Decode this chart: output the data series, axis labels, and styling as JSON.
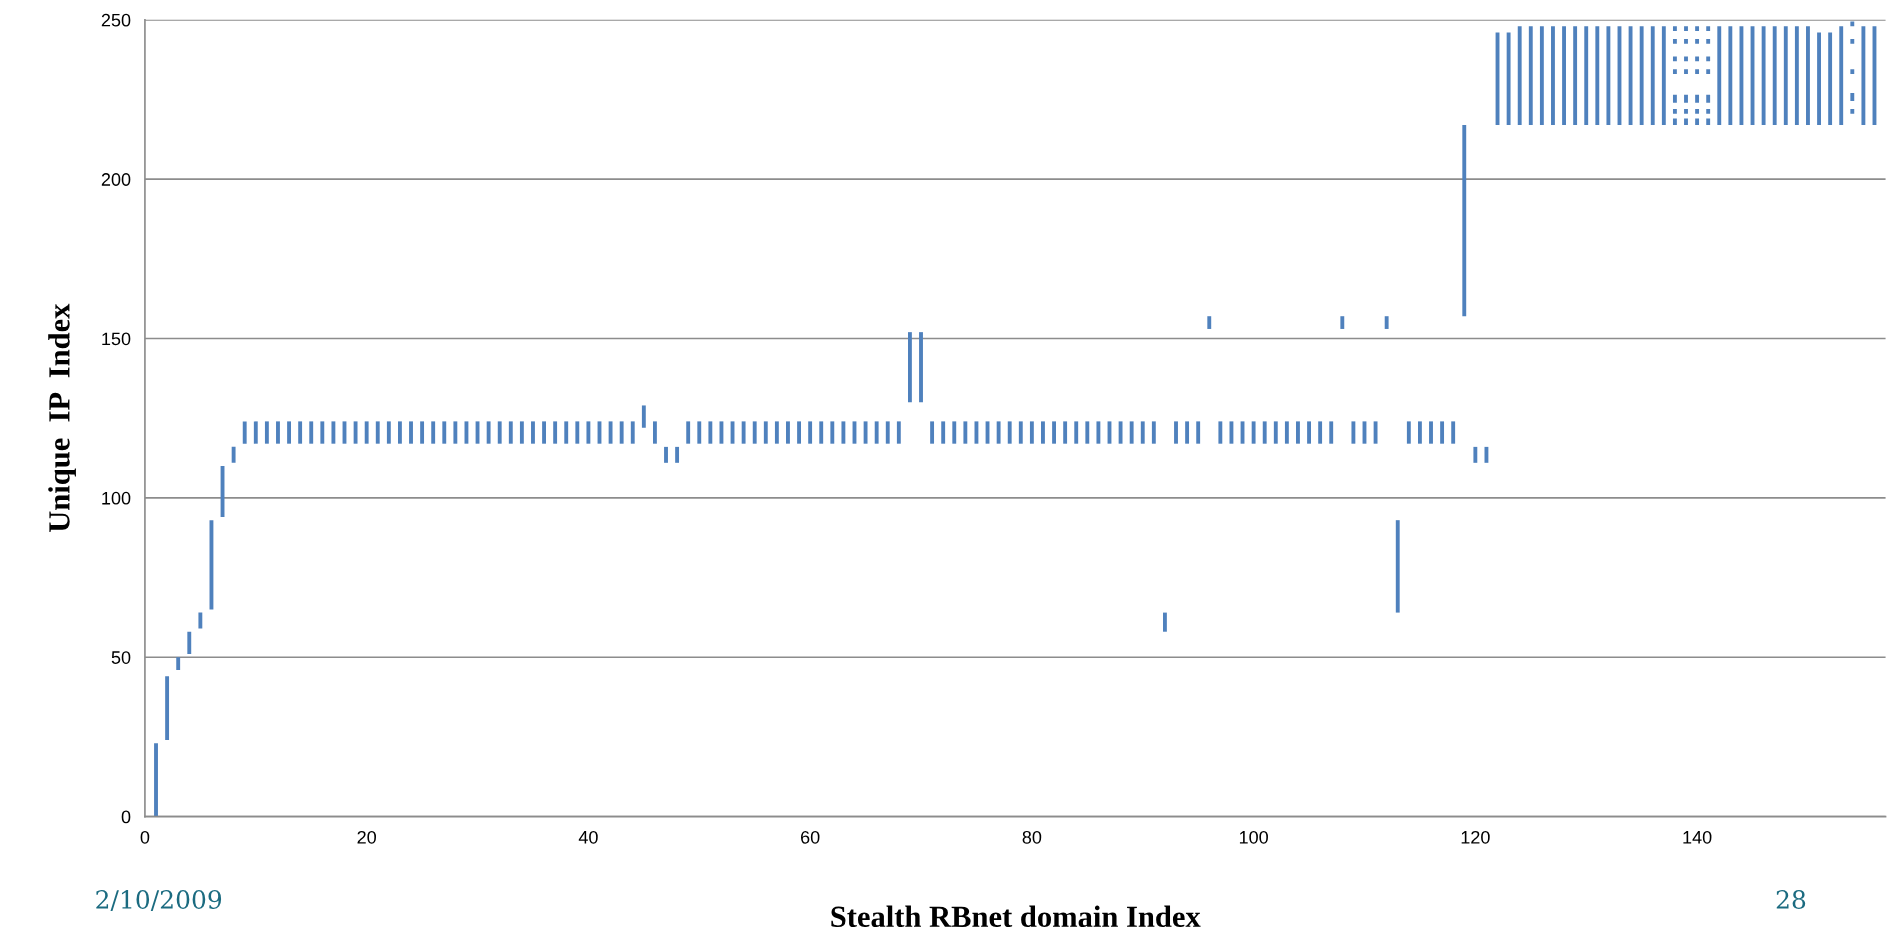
{
  "chart_data": {
    "type": "bar",
    "xlabel": "Stealth RBnet domain Index",
    "ylabel": "Unique  IP  Index",
    "xlim": [
      0,
      157
    ],
    "ylim": [
      0,
      250
    ],
    "xticks": [
      0,
      20,
      40,
      60,
      80,
      100,
      120,
      140
    ],
    "yticks": [
      0,
      50,
      100,
      150,
      200,
      250
    ],
    "grid": "y",
    "annotations": [
      "2/10/2009",
      "28"
    ],
    "series": [
      {
        "color": "#4f81bd",
        "x": [
          1,
          2,
          3,
          4,
          5,
          6,
          7,
          8,
          9,
          10,
          11,
          12,
          13,
          14,
          15,
          16,
          17,
          18,
          19,
          20,
          21,
          22,
          23,
          24,
          25,
          26,
          27,
          28,
          29,
          30,
          31,
          32,
          33,
          34,
          35,
          36,
          37,
          38,
          39,
          40,
          41,
          42,
          43,
          44,
          45,
          46,
          47,
          48,
          49,
          50,
          51,
          52,
          53,
          54,
          55,
          56,
          57,
          58,
          59,
          60,
          61,
          62,
          63,
          64,
          65,
          66,
          67,
          68,
          69,
          70,
          71,
          72,
          73,
          74,
          75,
          76,
          77,
          78,
          79,
          80,
          81,
          82,
          83,
          84,
          85,
          86,
          87,
          88,
          89,
          90,
          91,
          92,
          93,
          94,
          95,
          96,
          97,
          98,
          99,
          100,
          101,
          102,
          103,
          104,
          105,
          106,
          107,
          108,
          109,
          110,
          111,
          112,
          113,
          114,
          115,
          116,
          117,
          118,
          119,
          120,
          121
        ],
        "base": [
          0,
          24,
          46,
          51,
          59,
          65,
          94,
          111,
          117,
          117,
          117,
          117,
          117,
          117,
          117,
          117,
          117,
          117,
          117,
          117,
          117,
          117,
          117,
          117,
          117,
          117,
          117,
          117,
          117,
          117,
          117,
          117,
          117,
          117,
          117,
          117,
          117,
          117,
          117,
          117,
          117,
          117,
          117,
          117,
          122,
          117,
          111,
          111,
          117,
          117,
          117,
          117,
          117,
          117,
          117,
          117,
          117,
          117,
          117,
          117,
          117,
          117,
          117,
          117,
          117,
          117,
          117,
          117,
          130,
          130,
          117,
          117,
          117,
          117,
          117,
          117,
          117,
          117,
          117,
          117,
          117,
          117,
          117,
          117,
          117,
          117,
          117,
          117,
          117,
          117,
          117,
          58,
          117,
          117,
          117,
          153,
          117,
          117,
          117,
          117,
          117,
          117,
          117,
          117,
          117,
          117,
          117,
          153,
          117,
          117,
          117,
          153,
          64,
          117,
          117,
          117,
          117,
          117,
          157,
          111,
          111
        ],
        "values": [
          23,
          20,
          4,
          7,
          5,
          28,
          16,
          5,
          7,
          7,
          7,
          7,
          7,
          7,
          7,
          7,
          7,
          7,
          7,
          7,
          7,
          7,
          7,
          7,
          7,
          7,
          7,
          7,
          7,
          7,
          7,
          7,
          7,
          7,
          7,
          7,
          7,
          7,
          7,
          7,
          7,
          7,
          7,
          7,
          7,
          7,
          5,
          5,
          7,
          7,
          7,
          7,
          7,
          7,
          7,
          7,
          7,
          7,
          7,
          7,
          7,
          7,
          7,
          7,
          7,
          7,
          7,
          7,
          22,
          22,
          7,
          7,
          7,
          7,
          7,
          7,
          7,
          7,
          7,
          7,
          7,
          7,
          7,
          7,
          7,
          7,
          7,
          7,
          7,
          7,
          7,
          6,
          7,
          7,
          7,
          4,
          7,
          7,
          7,
          7,
          7,
          7,
          7,
          7,
          7,
          7,
          7,
          4,
          7,
          7,
          7,
          4,
          29,
          7,
          7,
          7,
          7,
          7,
          60,
          5,
          5
        ]
      },
      {
        "color": "#4f81bd",
        "x": [
          122,
          123,
          124,
          125,
          126,
          127,
          128,
          129,
          130,
          131,
          132,
          133,
          134,
          135,
          136,
          137,
          142,
          143,
          144,
          145,
          146,
          147,
          148,
          149,
          150,
          151,
          152,
          153,
          155,
          156
        ],
        "base": [
          217,
          217,
          217,
          217,
          217,
          217,
          217,
          217,
          217,
          217,
          217,
          217,
          217,
          217,
          217,
          217,
          217,
          217,
          217,
          217,
          217,
          217,
          217,
          217,
          217,
          217,
          217,
          217,
          217,
          217
        ],
        "values": [
          29,
          29,
          31,
          31,
          31,
          31,
          31,
          31,
          31,
          31,
          31,
          31,
          31,
          31,
          31,
          31,
          31,
          31,
          31,
          31,
          31,
          31,
          31,
          31,
          31,
          29,
          29,
          31,
          31,
          31
        ]
      },
      {
        "color": "#4f81bd",
        "x": [
          138,
          139,
          140,
          141,
          154
        ],
        "base": [
          246.5,
          246.5,
          246.5,
          246.5,
          248
        ],
        "values": [
          1.5,
          1.5,
          1.5,
          1.5,
          1.5
        ]
      },
      {
        "color": "#4f81bd",
        "x": [
          138,
          139,
          140,
          141,
          154
        ],
        "base": [
          242.5,
          242.5,
          242.5,
          242.5,
          242.5
        ],
        "values": [
          1.5,
          1.5,
          1.5,
          1.5,
          1.5
        ]
      },
      {
        "color": "#4f81bd",
        "x": [
          138,
          139,
          140,
          141
        ],
        "base": [
          237,
          237,
          237,
          237
        ],
        "values": [
          1.5,
          1.5,
          1.5,
          1.5
        ]
      },
      {
        "color": "#4f81bd",
        "x": [
          138,
          139,
          140,
          141,
          154
        ],
        "base": [
          233,
          233,
          233,
          233,
          233
        ],
        "values": [
          1.5,
          1.5,
          1.5,
          1.5,
          1.5
        ]
      },
      {
        "color": "#4f81bd",
        "x": [
          138,
          139,
          140,
          141,
          154
        ],
        "base": [
          224,
          224,
          224,
          224,
          224.5
        ],
        "values": [
          2.5,
          2.5,
          2.5,
          2.5,
          2.5
        ]
      },
      {
        "color": "#4f81bd",
        "x": [
          138,
          139,
          140,
          141,
          154
        ],
        "base": [
          220.5,
          220.5,
          220.5,
          220.5,
          220.5
        ],
        "values": [
          1.5,
          1.5,
          1.5,
          1.5,
          1.5
        ]
      },
      {
        "color": "#4f81bd",
        "x": [
          138,
          139,
          140,
          141
        ],
        "base": [
          217,
          217,
          217,
          217
        ],
        "values": [
          2,
          2,
          2,
          2
        ]
      }
    ]
  }
}
